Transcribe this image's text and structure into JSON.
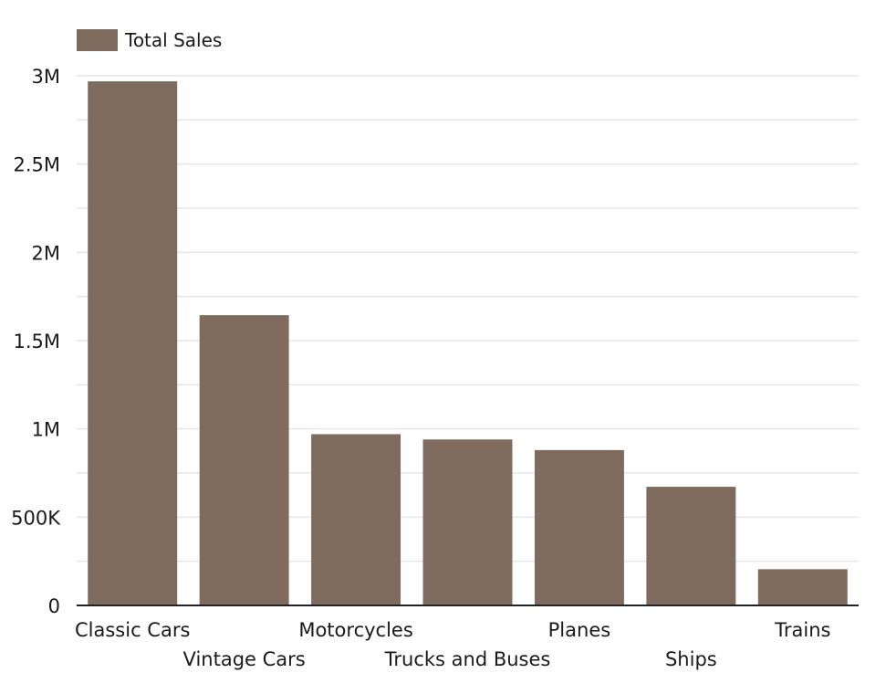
{
  "chart_data": {
    "type": "bar",
    "categories": [
      "Classic Cars",
      "Vintage Cars",
      "Motorcycles",
      "Trucks and Buses",
      "Planes",
      "Ships",
      "Trains"
    ],
    "series": [
      {
        "name": "Total Sales",
        "values": [
          2968546,
          1644000,
          970000,
          940000,
          880000,
          672000,
          205000
        ],
        "color": "#7e6b5d"
      }
    ],
    "title": "",
    "xlabel": "",
    "ylabel": "",
    "ylim": [
      0,
      3000000
    ],
    "yticks": [
      {
        "value": 0,
        "label": "0"
      },
      {
        "value": 500000,
        "label": "500K"
      },
      {
        "value": 1000000,
        "label": "1M"
      },
      {
        "value": 1500000,
        "label": "1.5M"
      },
      {
        "value": 2000000,
        "label": "2M"
      },
      {
        "value": 2500000,
        "label": "2.5M"
      },
      {
        "value": 3000000,
        "label": "3M"
      }
    ],
    "grid": true,
    "legend_position": "top-left",
    "grid_color": "#e6e6e6",
    "axis_color": "#222222"
  }
}
